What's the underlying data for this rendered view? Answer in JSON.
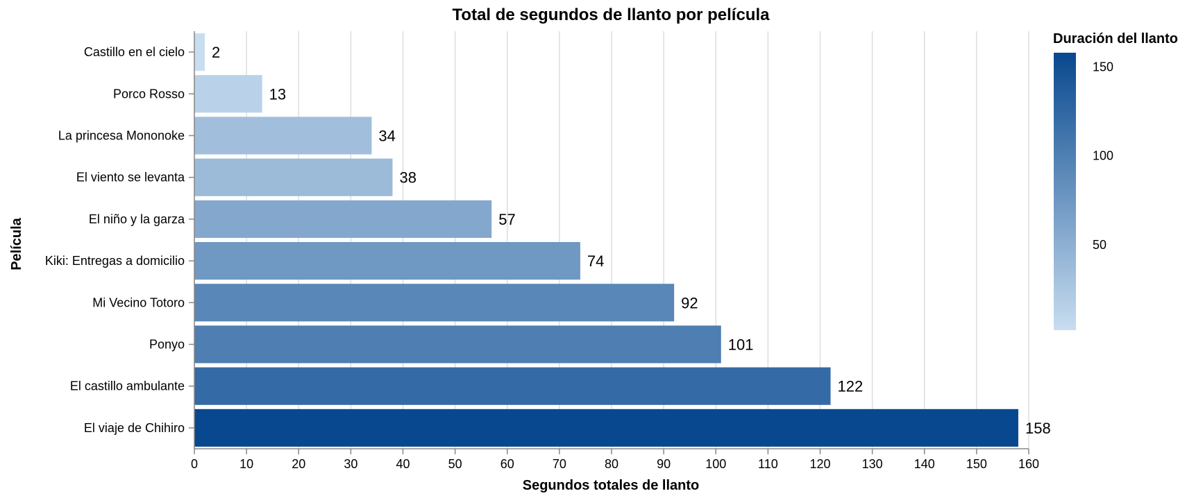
{
  "chart_data": {
    "type": "bar",
    "orientation": "horizontal",
    "title": "Total de segundos de llanto por película",
    "xlabel": "Segundos totales de llanto",
    "ylabel": "Película",
    "xlim": [
      0,
      160
    ],
    "x_ticks": [
      0,
      10,
      20,
      30,
      40,
      50,
      60,
      70,
      80,
      90,
      100,
      110,
      120,
      130,
      140,
      150,
      160
    ],
    "grid": true,
    "categories": [
      "Castillo en el cielo",
      "Porco Rosso",
      "La princesa Mononoke",
      "El viento se levanta",
      "El niño y la garza",
      "Kiki: Entregas a domicilio",
      "Mi Vecino Totoro",
      "Ponyo",
      "El castillo ambulante",
      "El viaje de Chihiro"
    ],
    "values": [
      2,
      13,
      34,
      38,
      57,
      74,
      92,
      101,
      122,
      158
    ],
    "data_labels": [
      "2",
      "13",
      "34",
      "38",
      "57",
      "74",
      "92",
      "101",
      "122",
      "158"
    ],
    "legend": {
      "title": "Duración del llanto",
      "placement": "right",
      "type": "gradient",
      "ticks": [
        50,
        100,
        150
      ],
      "domain": [
        2,
        158
      ],
      "color_low": "#c8ddf0",
      "color_high": "#08488e"
    }
  }
}
